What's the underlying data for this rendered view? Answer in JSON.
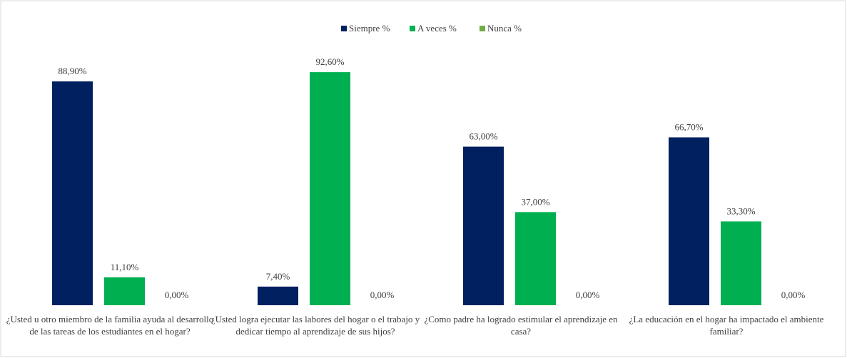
{
  "chart_data": {
    "type": "bar",
    "categories": [
      "¿Usted u otro miembro de la familia ayuda al desarrollo de las tareas de los estudiantes en el hogar?",
      "¿Usted logra ejecutar las labores del hogar o el trabajo y dedicar tiempo al aprendizaje de sus hijos?",
      "¿Como padre ha logrado estimular el aprendizaje en casa?",
      "¿La educación en el hogar ha impactado el ambiente familiar?"
    ],
    "series": [
      {
        "name": "Siempre %",
        "color": "#002060",
        "values": [
          88.9,
          7.4,
          63.0,
          66.7
        ],
        "value_labels": [
          "88,90%",
          "7,40%",
          "63,00%",
          "66,70%"
        ]
      },
      {
        "name": "A veces %",
        "color": "#00b050",
        "values": [
          11.1,
          92.6,
          37.0,
          33.3
        ],
        "value_labels": [
          "11,10%",
          "92,60%",
          "37,00%",
          "33,30%"
        ]
      },
      {
        "name": "Nunca %",
        "color": "#70ad47",
        "values": [
          0,
          0,
          0,
          0
        ],
        "value_labels": [
          "0,00%",
          "0,00%",
          "0,00%",
          "0,00%"
        ]
      }
    ],
    "legend": "top"
  }
}
